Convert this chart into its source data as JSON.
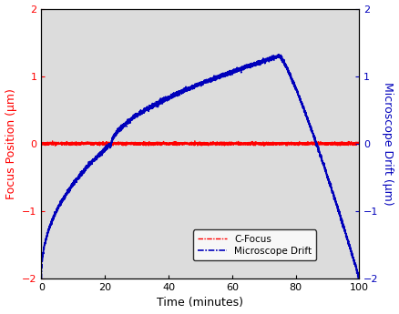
{
  "title": "",
  "xlabel": "Time (minutes)",
  "ylabel_left": "Focus Position (μm)",
  "ylabel_right": "Microscope Drift (μm)",
  "xlim": [
    0,
    100
  ],
  "ylim": [
    -2,
    2
  ],
  "yticks": [
    -2,
    -1,
    0,
    1,
    2
  ],
  "xticks": [
    0,
    20,
    40,
    60,
    80,
    100
  ],
  "bg_color": "#dcdcdc",
  "fig_color": "#ffffff",
  "cfocus_color": "#ff0000",
  "drift_color": "#0000bb",
  "legend_labels": [
    "C-Focus",
    "Microscope Drift"
  ],
  "cfocus_lw": 1.0,
  "drift_lw": 1.2,
  "xlabel_fontsize": 9,
  "ylabel_fontsize": 9,
  "tick_fontsize": 8,
  "legend_fontsize": 7.5
}
